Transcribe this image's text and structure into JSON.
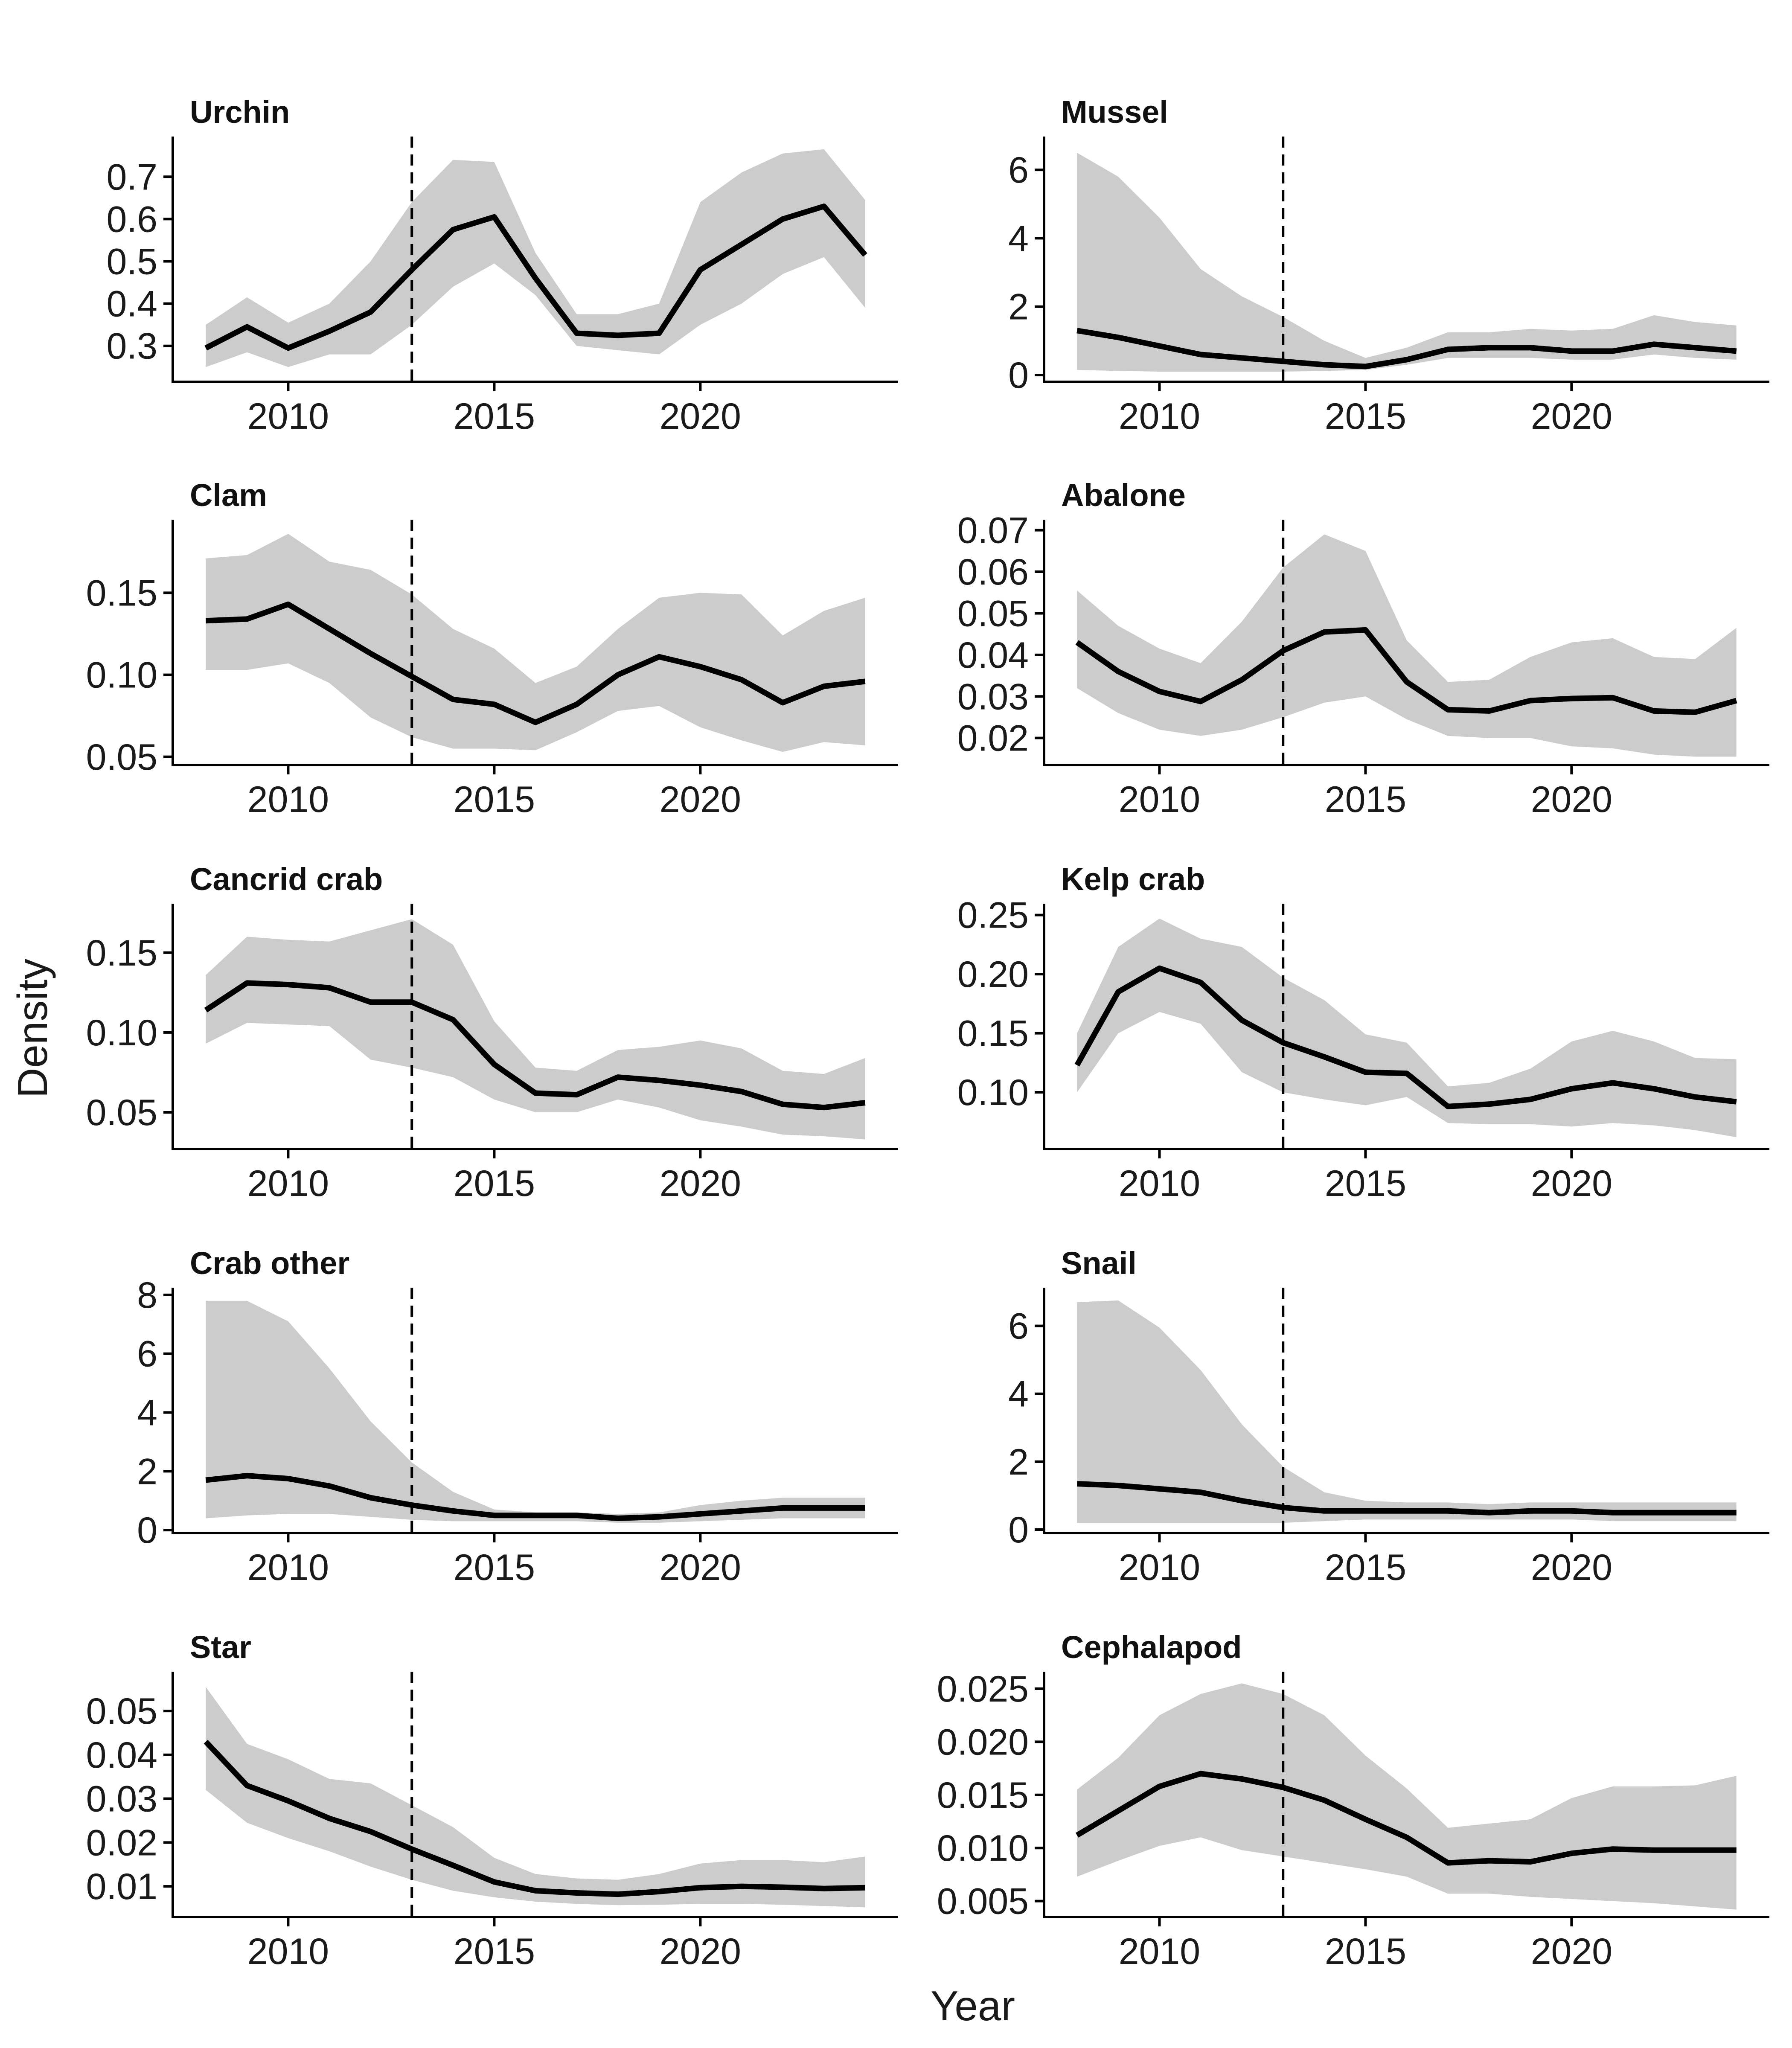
{
  "figure": {
    "xlabel": "Year",
    "ylabel": "Density"
  },
  "chart_data": [
    {
      "type": "line",
      "title": "Urchin",
      "x": [
        2008,
        2009,
        2010,
        2011,
        2012,
        2013,
        2014,
        2015,
        2016,
        2017,
        2018,
        2019,
        2020,
        2021,
        2022,
        2023,
        2024
      ],
      "series": [
        {
          "values": [
            0.295,
            0.345,
            0.295,
            0.335,
            0.38,
            0.48,
            0.575,
            0.605,
            0.46,
            0.33,
            0.325,
            0.33,
            0.48,
            0.54,
            0.6,
            0.63,
            0.515
          ],
          "lower": [
            0.25,
            0.285,
            0.25,
            0.28,
            0.28,
            0.35,
            0.44,
            0.495,
            0.42,
            0.3,
            0.29,
            0.28,
            0.35,
            0.4,
            0.47,
            0.51,
            0.39
          ],
          "upper": [
            0.35,
            0.415,
            0.355,
            0.4,
            0.5,
            0.64,
            0.74,
            0.735,
            0.52,
            0.375,
            0.375,
            0.4,
            0.64,
            0.71,
            0.755,
            0.765,
            0.645
          ]
        }
      ],
      "yticks": [
        0.3,
        0.4,
        0.5,
        0.6,
        0.7
      ],
      "ytick_labels": [
        "0.3",
        "0.4",
        "0.5",
        "0.6",
        "0.7"
      ],
      "ylim": [
        0.215,
        0.785
      ],
      "xticks": [
        2010,
        2015,
        2020
      ],
      "xlim": [
        2007.2,
        2024.8
      ],
      "vline": 2013
    },
    {
      "type": "line",
      "title": "Mussel",
      "x": [
        2008,
        2009,
        2010,
        2011,
        2012,
        2013,
        2014,
        2015,
        2016,
        2017,
        2018,
        2019,
        2020,
        2021,
        2022,
        2023,
        2024
      ],
      "series": [
        {
          "values": [
            1.3,
            1.1,
            0.85,
            0.6,
            0.5,
            0.4,
            0.3,
            0.25,
            0.45,
            0.75,
            0.8,
            0.8,
            0.7,
            0.7,
            0.9,
            0.8,
            0.7
          ],
          "lower": [
            0.15,
            0.12,
            0.1,
            0.1,
            0.1,
            0.1,
            0.12,
            0.15,
            0.3,
            0.5,
            0.5,
            0.5,
            0.45,
            0.45,
            0.6,
            0.5,
            0.45
          ],
          "upper": [
            6.5,
            5.8,
            4.6,
            3.1,
            2.3,
            1.7,
            1.0,
            0.5,
            0.8,
            1.25,
            1.25,
            1.35,
            1.3,
            1.35,
            1.75,
            1.55,
            1.45
          ]
        }
      ],
      "yticks": [
        0,
        2,
        4,
        6
      ],
      "ytick_labels": [
        "0",
        "2",
        "4",
        "6"
      ],
      "ylim": [
        -0.2,
        6.85
      ],
      "xticks": [
        2010,
        2015,
        2020
      ],
      "xlim": [
        2007.2,
        2024.8
      ],
      "vline": 2013
    },
    {
      "type": "line",
      "title": "Clam",
      "x": [
        2008,
        2009,
        2010,
        2011,
        2012,
        2013,
        2014,
        2015,
        2016,
        2017,
        2018,
        2019,
        2020,
        2021,
        2022,
        2023,
        2024
      ],
      "series": [
        {
          "values": [
            0.133,
            0.134,
            0.143,
            0.128,
            0.113,
            0.099,
            0.085,
            0.082,
            0.071,
            0.082,
            0.1,
            0.111,
            0.105,
            0.097,
            0.083,
            0.093,
            0.096
          ],
          "lower": [
            0.103,
            0.103,
            0.107,
            0.095,
            0.074,
            0.062,
            0.055,
            0.055,
            0.054,
            0.065,
            0.078,
            0.081,
            0.068,
            0.06,
            0.053,
            0.059,
            0.057
          ],
          "upper": [
            0.171,
            0.173,
            0.186,
            0.169,
            0.164,
            0.149,
            0.128,
            0.116,
            0.095,
            0.105,
            0.128,
            0.147,
            0.15,
            0.149,
            0.124,
            0.139,
            0.147
          ]
        }
      ],
      "yticks": [
        0.05,
        0.1,
        0.15
      ],
      "ytick_labels": [
        "0.05",
        "0.10",
        "0.15"
      ],
      "ylim": [
        0.045,
        0.192
      ],
      "xticks": [
        2010,
        2015,
        2020
      ],
      "xlim": [
        2007.2,
        2024.8
      ],
      "vline": 2013
    },
    {
      "type": "line",
      "title": "Abalone",
      "x": [
        2008,
        2009,
        2010,
        2011,
        2012,
        2013,
        2014,
        2015,
        2016,
        2017,
        2018,
        2019,
        2020,
        2021,
        2022,
        2023,
        2024
      ],
      "series": [
        {
          "values": [
            0.043,
            0.036,
            0.0312,
            0.0288,
            0.034,
            0.041,
            0.0455,
            0.046,
            0.0335,
            0.0268,
            0.0265,
            0.029,
            0.0295,
            0.0297,
            0.0265,
            0.0262,
            0.029
          ],
          "lower": [
            0.032,
            0.026,
            0.022,
            0.0205,
            0.022,
            0.025,
            0.0285,
            0.03,
            0.0245,
            0.0205,
            0.02,
            0.02,
            0.018,
            0.0175,
            0.016,
            0.0155,
            0.0155
          ],
          "upper": [
            0.0555,
            0.047,
            0.0415,
            0.038,
            0.048,
            0.061,
            0.069,
            0.065,
            0.0435,
            0.0335,
            0.034,
            0.0395,
            0.043,
            0.044,
            0.0395,
            0.039,
            0.0465
          ]
        }
      ],
      "yticks": [
        0.02,
        0.03,
        0.04,
        0.05,
        0.06,
        0.07
      ],
      "ytick_labels": [
        "0.02",
        "0.03",
        "0.04",
        "0.05",
        "0.06",
        "0.07"
      ],
      "ylim": [
        0.0135,
        0.0715
      ],
      "xticks": [
        2010,
        2015,
        2020
      ],
      "xlim": [
        2007.2,
        2024.8
      ],
      "vline": 2013
    },
    {
      "type": "line",
      "title": "Cancrid crab",
      "x": [
        2008,
        2009,
        2010,
        2011,
        2012,
        2013,
        2014,
        2015,
        2016,
        2017,
        2018,
        2019,
        2020,
        2021,
        2022,
        2023,
        2024
      ],
      "series": [
        {
          "values": [
            0.114,
            0.131,
            0.13,
            0.128,
            0.119,
            0.119,
            0.108,
            0.08,
            0.062,
            0.061,
            0.072,
            0.07,
            0.067,
            0.063,
            0.055,
            0.053,
            0.056
          ],
          "lower": [
            0.093,
            0.106,
            0.105,
            0.104,
            0.083,
            0.078,
            0.072,
            0.058,
            0.05,
            0.05,
            0.058,
            0.053,
            0.045,
            0.041,
            0.036,
            0.035,
            0.033
          ],
          "upper": [
            0.136,
            0.16,
            0.158,
            0.157,
            0.164,
            0.171,
            0.155,
            0.107,
            0.078,
            0.076,
            0.089,
            0.091,
            0.095,
            0.09,
            0.076,
            0.074,
            0.084
          ]
        }
      ],
      "yticks": [
        0.05,
        0.1,
        0.15
      ],
      "ytick_labels": [
        "0.05",
        "0.10",
        "0.15"
      ],
      "ylim": [
        0.027,
        0.178
      ],
      "xticks": [
        2010,
        2015,
        2020
      ],
      "xlim": [
        2007.2,
        2024.8
      ],
      "vline": 2013
    },
    {
      "type": "line",
      "title": "Kelp crab",
      "x": [
        2008,
        2009,
        2010,
        2011,
        2012,
        2013,
        2014,
        2015,
        2016,
        2017,
        2018,
        2019,
        2020,
        2021,
        2022,
        2023,
        2024
      ],
      "series": [
        {
          "values": [
            0.123,
            0.185,
            0.205,
            0.193,
            0.161,
            0.142,
            0.13,
            0.117,
            0.116,
            0.088,
            0.09,
            0.094,
            0.103,
            0.108,
            0.103,
            0.096,
            0.092
          ],
          "lower": [
            0.1,
            0.15,
            0.168,
            0.158,
            0.117,
            0.1,
            0.094,
            0.089,
            0.096,
            0.074,
            0.073,
            0.073,
            0.071,
            0.074,
            0.072,
            0.068,
            0.062
          ],
          "upper": [
            0.15,
            0.223,
            0.247,
            0.23,
            0.223,
            0.197,
            0.178,
            0.149,
            0.142,
            0.105,
            0.108,
            0.12,
            0.143,
            0.152,
            0.143,
            0.129,
            0.128
          ]
        }
      ],
      "yticks": [
        0.1,
        0.15,
        0.2,
        0.25
      ],
      "ytick_labels": [
        "0.10",
        "0.15",
        "0.20",
        "0.25"
      ],
      "ylim": [
        0.052,
        0.256
      ],
      "xticks": [
        2010,
        2015,
        2020
      ],
      "xlim": [
        2007.2,
        2024.8
      ],
      "vline": 2013
    },
    {
      "type": "line",
      "title": "Crab other",
      "x": [
        2008,
        2009,
        2010,
        2011,
        2012,
        2013,
        2014,
        2015,
        2016,
        2017,
        2018,
        2019,
        2020,
        2021,
        2022,
        2023,
        2024
      ],
      "series": [
        {
          "values": [
            1.7,
            1.85,
            1.75,
            1.5,
            1.1,
            0.85,
            0.65,
            0.5,
            0.5,
            0.5,
            0.4,
            0.45,
            0.55,
            0.65,
            0.75,
            0.75,
            0.75
          ],
          "lower": [
            0.4,
            0.5,
            0.55,
            0.55,
            0.45,
            0.35,
            0.3,
            0.3,
            0.3,
            0.3,
            0.25,
            0.25,
            0.3,
            0.35,
            0.4,
            0.4,
            0.4
          ],
          "upper": [
            7.8,
            7.8,
            7.1,
            5.5,
            3.7,
            2.3,
            1.3,
            0.7,
            0.6,
            0.6,
            0.55,
            0.6,
            0.85,
            1.0,
            1.1,
            1.1,
            1.1
          ]
        }
      ],
      "yticks": [
        0,
        2,
        4,
        6,
        8
      ],
      "ytick_labels": [
        "0",
        "2",
        "4",
        "6",
        "8"
      ],
      "ylim": [
        -0.1,
        8.1
      ],
      "xticks": [
        2010,
        2015,
        2020
      ],
      "xlim": [
        2007.2,
        2024.8
      ],
      "vline": 2013
    },
    {
      "type": "line",
      "title": "Snail",
      "x": [
        2008,
        2009,
        2010,
        2011,
        2012,
        2013,
        2014,
        2015,
        2016,
        2017,
        2018,
        2019,
        2020,
        2021,
        2022,
        2023,
        2024
      ],
      "series": [
        {
          "values": [
            1.35,
            1.3,
            1.2,
            1.1,
            0.85,
            0.65,
            0.55,
            0.55,
            0.55,
            0.55,
            0.5,
            0.55,
            0.55,
            0.5,
            0.5,
            0.5,
            0.5
          ],
          "lower": [
            0.2,
            0.2,
            0.2,
            0.2,
            0.2,
            0.2,
            0.25,
            0.3,
            0.3,
            0.3,
            0.3,
            0.3,
            0.3,
            0.25,
            0.25,
            0.25,
            0.25
          ],
          "upper": [
            6.7,
            6.75,
            5.95,
            4.7,
            3.1,
            1.85,
            1.1,
            0.85,
            0.8,
            0.8,
            0.75,
            0.8,
            0.8,
            0.8,
            0.8,
            0.8,
            0.8
          ]
        }
      ],
      "yticks": [
        0,
        2,
        4,
        6
      ],
      "ytick_labels": [
        "0",
        "2",
        "4",
        "6"
      ],
      "ylim": [
        -0.1,
        7.0
      ],
      "xticks": [
        2010,
        2015,
        2020
      ],
      "xlim": [
        2007.2,
        2024.8
      ],
      "vline": 2013
    },
    {
      "type": "line",
      "title": "Star",
      "x": [
        2008,
        2009,
        2010,
        2011,
        2012,
        2013,
        2014,
        2015,
        2016,
        2017,
        2018,
        2019,
        2020,
        2021,
        2022,
        2023,
        2024
      ],
      "series": [
        {
          "values": [
            0.043,
            0.033,
            0.0295,
            0.0255,
            0.0225,
            0.0185,
            0.0148,
            0.011,
            0.009,
            0.0085,
            0.0082,
            0.0088,
            0.0097,
            0.01,
            0.0098,
            0.0095,
            0.0097
          ],
          "lower": [
            0.032,
            0.0245,
            0.021,
            0.018,
            0.0145,
            0.0115,
            0.009,
            0.0075,
            0.0065,
            0.006,
            0.0057,
            0.0058,
            0.006,
            0.006,
            0.0058,
            0.0055,
            0.0052
          ],
          "upper": [
            0.0555,
            0.0425,
            0.039,
            0.0345,
            0.0335,
            0.0285,
            0.0235,
            0.0165,
            0.0128,
            0.0118,
            0.0115,
            0.0128,
            0.0152,
            0.016,
            0.016,
            0.0155,
            0.0168
          ]
        }
      ],
      "yticks": [
        0.01,
        0.02,
        0.03,
        0.04,
        0.05
      ],
      "ytick_labels": [
        "0.01",
        "0.02",
        "0.03",
        "0.04",
        "0.05"
      ],
      "ylim": [
        0.003,
        0.058
      ],
      "xticks": [
        2010,
        2015,
        2020
      ],
      "xlim": [
        2007.2,
        2024.8
      ],
      "vline": 2013
    },
    {
      "type": "line",
      "title": "Cephalapod",
      "x": [
        2008,
        2009,
        2010,
        2011,
        2012,
        2013,
        2014,
        2015,
        2016,
        2017,
        2018,
        2019,
        2020,
        2021,
        2022,
        2023,
        2024
      ],
      "series": [
        {
          "values": [
            0.0112,
            0.0135,
            0.0158,
            0.017,
            0.0165,
            0.0157,
            0.0145,
            0.0127,
            0.011,
            0.0086,
            0.0088,
            0.0087,
            0.0095,
            0.0099,
            0.0098,
            0.0098,
            0.0098
          ],
          "lower": [
            0.0073,
            0.0088,
            0.0102,
            0.011,
            0.0098,
            0.0092,
            0.0086,
            0.008,
            0.0073,
            0.0057,
            0.0057,
            0.0054,
            0.0052,
            0.005,
            0.0048,
            0.0045,
            0.0042
          ],
          "upper": [
            0.0155,
            0.0185,
            0.0225,
            0.0245,
            0.0255,
            0.0245,
            0.0225,
            0.0187,
            0.0156,
            0.0119,
            0.0123,
            0.0127,
            0.0147,
            0.0158,
            0.0158,
            0.0159,
            0.0168
          ]
        }
      ],
      "yticks": [
        0.005,
        0.01,
        0.015,
        0.02,
        0.025
      ],
      "ytick_labels": [
        "0.005",
        "0.010",
        "0.015",
        "0.020",
        "0.025"
      ],
      "ylim": [
        0.0035,
        0.0262
      ],
      "xticks": [
        2010,
        2015,
        2020
      ],
      "xlim": [
        2007.2,
        2024.8
      ],
      "vline": 2013
    }
  ]
}
